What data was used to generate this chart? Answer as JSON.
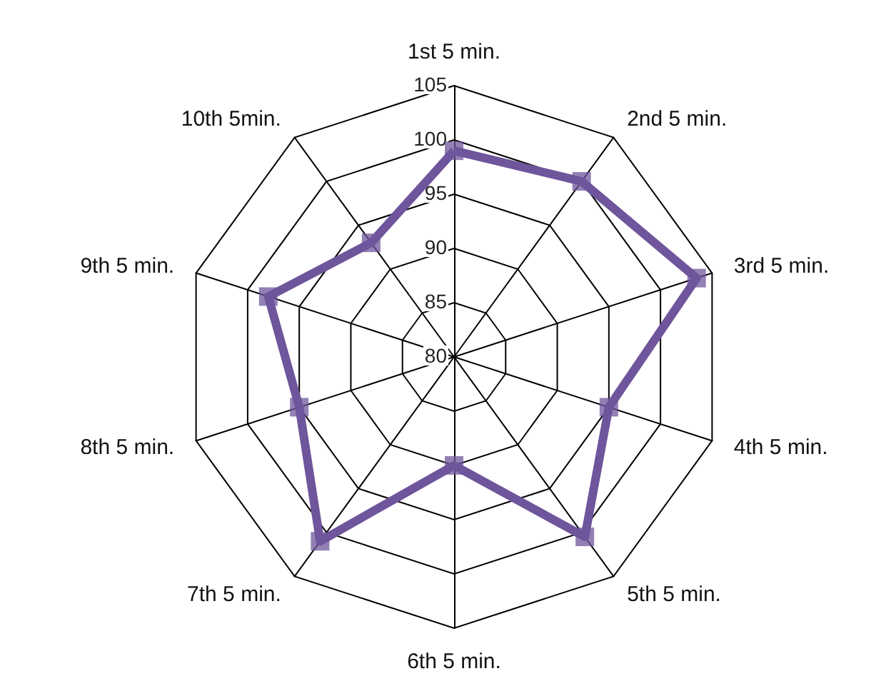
{
  "chart_data": {
    "type": "radar",
    "categories": [
      "1st 5 min.",
      "2nd 5 min.",
      "3rd 5 min.",
      "4th 5 min.",
      "5th 5 min.",
      "6th 5 min.",
      "7th 5 min.",
      "8th 5 min.",
      "9th 5 min.",
      "10th 5min."
    ],
    "series": [
      {
        "color": "#6f559b",
        "values": [
          99,
          100,
          103.5,
          95,
          100.5,
          90,
          101,
          95,
          98,
          93
        ]
      }
    ],
    "ylim": [
      80,
      105
    ],
    "yticks": [
      80,
      85,
      90,
      95,
      100,
      105
    ],
    "grid": true,
    "marker": "square",
    "line_style": "solid"
  }
}
